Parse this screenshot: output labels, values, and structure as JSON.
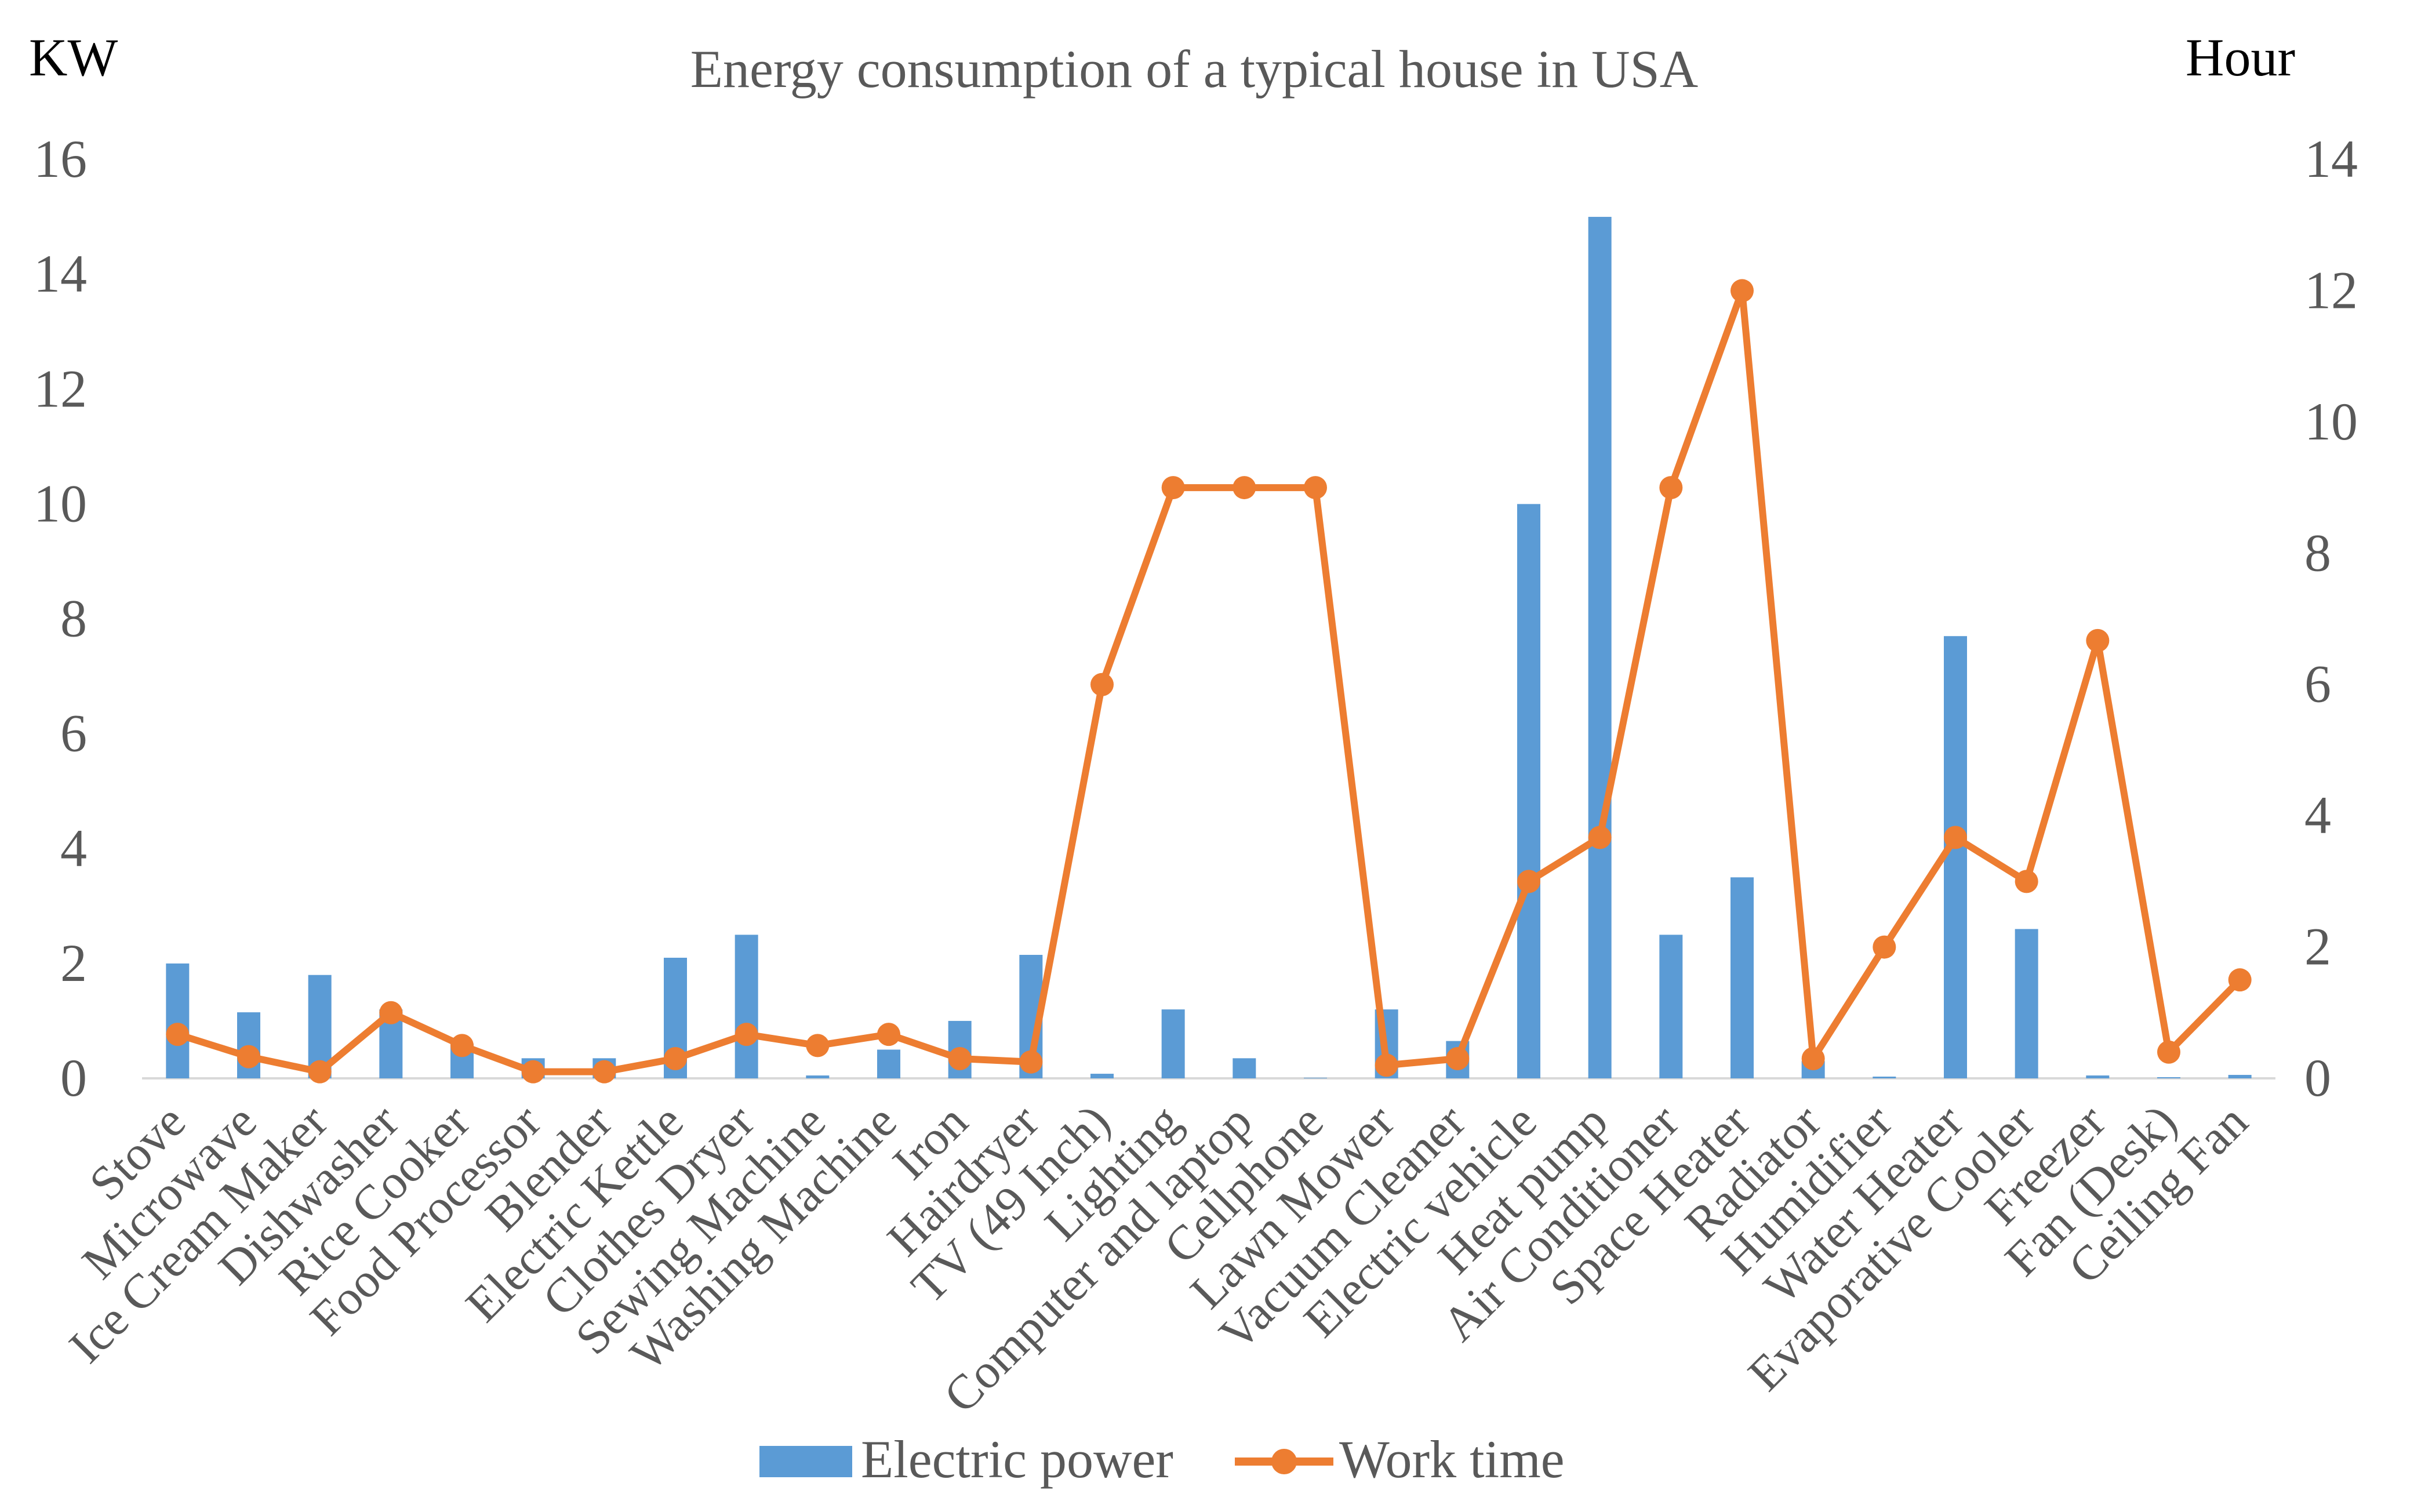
{
  "chart_data": {
    "type": "bar+line",
    "title": "Energy consumption of a typical house in USA",
    "y_left_label": "KW",
    "y_right_label": "Hour",
    "y_left_lim": [
      0,
      16
    ],
    "y_left_ticks": [
      0,
      2,
      4,
      6,
      8,
      10,
      12,
      14,
      16
    ],
    "y_right_lim": [
      0,
      14
    ],
    "y_right_ticks": [
      0,
      2,
      4,
      6,
      8,
      10,
      12,
      14
    ],
    "categories": [
      "Stove",
      "Microwave",
      "Ice Cream Maker",
      "Dishwasher",
      "Rice Cooker",
      "Food Processor",
      "Blender",
      "Electric Kettle",
      "Clothes Dryer",
      "Sewing Machine",
      "Washing Machine",
      "Iron",
      "Hairdryer",
      "TV (49 Inch)",
      "Lighting",
      "Computer and laptop",
      "Cellphone",
      "Lawn Mower",
      "Vacuum Cleaner",
      "Electric vehicle",
      "Heat pump",
      "Air Conditioner",
      "Space Heater",
      "Radiator",
      "Humidifier",
      "Water Heater",
      "Evaporative Cooler",
      "Freezer",
      "Fan (Desk)",
      "Ceiling Fan"
    ],
    "series": [
      {
        "name": "Electric power",
        "type": "bar",
        "axis": "left",
        "color": "#5b9bd5",
        "values": [
          2.0,
          1.15,
          1.8,
          1.2,
          0.6,
          0.35,
          0.35,
          2.1,
          2.5,
          0.05,
          0.5,
          1.0,
          2.15,
          0.08,
          1.2,
          0.35,
          0.01,
          1.2,
          0.65,
          10.0,
          15.0,
          2.5,
          3.5,
          0.3,
          0.03,
          7.7,
          2.6,
          0.05,
          0.02,
          0.06
        ]
      },
      {
        "name": "Work time",
        "type": "line",
        "axis": "right",
        "color": "#ed7d31",
        "values": [
          0.67,
          0.33,
          0.1,
          1.0,
          0.5,
          0.1,
          0.1,
          0.3,
          0.67,
          0.5,
          0.67,
          0.3,
          0.25,
          6.0,
          9.0,
          9.0,
          9.0,
          0.2,
          0.3,
          3.0,
          3.67,
          9.0,
          12.0,
          0.3,
          2.0,
          3.67,
          3.0,
          6.67,
          0.4,
          1.5
        ]
      }
    ],
    "legend": "bottom"
  }
}
